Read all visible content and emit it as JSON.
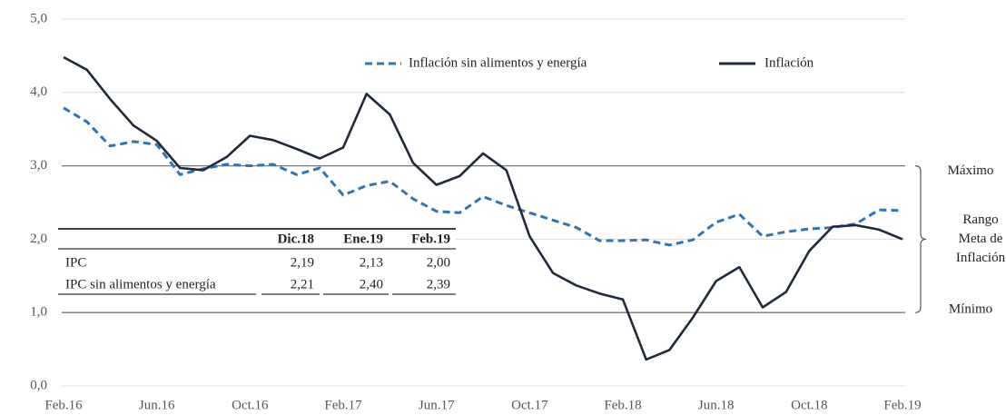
{
  "chart_data": {
    "type": "line",
    "categories": [
      "Feb.16",
      null,
      null,
      null,
      "Jun.16",
      null,
      null,
      null,
      "Oct.16",
      null,
      null,
      null,
      "Feb.17",
      null,
      null,
      null,
      "Jun.17",
      null,
      null,
      null,
      "Oct.17",
      null,
      null,
      null,
      "Feb.18",
      null,
      null,
      null,
      "Jun.18",
      null,
      null,
      null,
      "Oct.18",
      null,
      null,
      null,
      "Feb.19"
    ],
    "series": [
      {
        "name": "Inflación sin alimentos y energía",
        "color": "#2e75b6",
        "dash": true,
        "values": [
          3.79,
          3.6,
          3.27,
          3.33,
          3.29,
          2.88,
          2.96,
          3.02,
          3.0,
          3.02,
          2.88,
          2.97,
          2.6,
          2.73,
          2.79,
          2.55,
          2.38,
          2.36,
          2.58,
          2.46,
          2.36,
          2.26,
          2.16,
          1.98,
          1.98,
          1.99,
          1.92,
          1.99,
          2.23,
          2.34,
          2.04,
          2.1,
          2.14,
          2.16,
          2.21,
          2.4,
          2.39
        ]
      },
      {
        "name": "Inflación",
        "color": "#1f2a3c",
        "dash": false,
        "values": [
          4.48,
          4.31,
          3.91,
          3.55,
          3.34,
          2.97,
          2.94,
          3.12,
          3.41,
          3.35,
          3.23,
          3.1,
          3.25,
          3.98,
          3.7,
          3.04,
          2.74,
          2.86,
          3.17,
          2.94,
          2.04,
          1.54,
          1.37,
          1.26,
          1.18,
          0.36,
          0.49,
          0.93,
          1.43,
          1.62,
          1.07,
          1.28,
          1.84,
          2.17,
          2.19,
          2.13,
          2.0
        ]
      }
    ],
    "ylim": [
      0,
      5
    ],
    "yticks": [
      {
        "value": 0,
        "label": "0,0"
      },
      {
        "value": 1,
        "label": "1,0"
      },
      {
        "value": 2,
        "label": "2,0"
      },
      {
        "value": 3,
        "label": "3,0"
      },
      {
        "value": 4,
        "label": "4,0"
      },
      {
        "value": 5,
        "label": "5,0"
      }
    ],
    "grid": true,
    "target_range": [
      1,
      3
    ],
    "annotations": [
      "Máximo",
      "Rango",
      "Meta de",
      "Inflación",
      "Mínimo"
    ],
    "table": {
      "header": [
        "Dic.18",
        "Ene.19",
        "Feb.19"
      ],
      "rows": [
        [
          "IPC",
          "2,19",
          "2,13",
          "2,00"
        ],
        [
          "IPC sin alimentos y energía",
          "2,21",
          "2,40",
          "2,39"
        ]
      ]
    }
  }
}
